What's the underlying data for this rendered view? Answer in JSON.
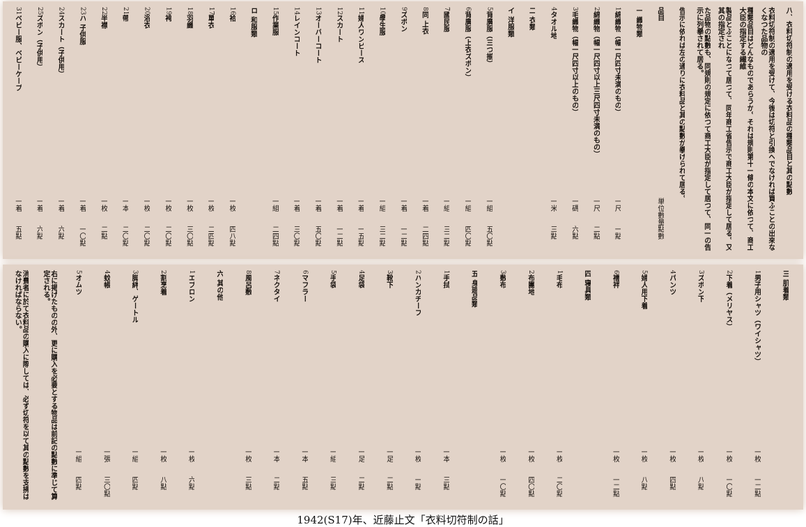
{
  "panels": [
    {
      "columns": [
        {
          "text": "八、衣料切符制の適用を受ける衣料品の種類品目と其の點數"
        },
        {
          "text": "衣料切符制の適用を受けて、今後は切符と引換へでなければ買ふことの出來なくなつた品物の"
        },
        {
          "text": "種類品目はどんなものであらうか。それは規則第十一條の本文に依つて、商工大臣の指定する繊維"
        },
        {
          "text": "製品とふことになつて居つて、同年商工省告示で商工大臣が指定して居る。又其の指定され"
        },
        {
          "text": "た品物の點數も、同規則の規定に依つて商工大臣が指定して居つて、同一の告示に列擧されて居る。"
        },
        {
          "text": "告示に依れば左の通りに衣料品と其の點數が擧げられて居る。"
        },
        {
          "text": "品目",
          "unit": "単位數量",
          "points": "點數"
        },
        {
          "text": "一 織物類"
        },
        {
          "num": "1",
          "text": "綿織物（幅一尺四寸未満のもの）",
          "unit": "一尺",
          "points": "一點"
        },
        {
          "num": "2",
          "text": "綿織物（幅一尺四寸以上三尺四寸未満のもの）",
          "unit": "一尺",
          "points": "二點"
        },
        {
          "num": "3",
          "text": "毛織物（幅一尺四寸以上のもの）",
          "unit": "一碼",
          "points": "六點"
        },
        {
          "num": "4",
          "text": "タオル地",
          "unit": "一米",
          "points": "三點"
        },
        {
          "text": "二 衣類"
        },
        {
          "text": "イ 洋服類"
        },
        {
          "num": "5",
          "text": "背廣服（三つ揃）",
          "unit": "一組",
          "points": "五〇點"
        },
        {
          "num": "6",
          "text": "背廣服（上衣ズボン）",
          "unit": "一組",
          "points": "四〇點"
        },
        {
          "num": "7",
          "text": "國民服",
          "unit": "一組",
          "points": "三二點"
        },
        {
          "num": "8",
          "text": "同 上衣",
          "unit": "一着",
          "points": "二四點"
        },
        {
          "num": "9",
          "text": "ズボン",
          "unit": "一着",
          "points": "一二點"
        },
        {
          "num": "10",
          "text": "學生服",
          "unit": "一組",
          "points": "三二點"
        },
        {
          "num": "11",
          "text": "婦人ワンピース",
          "unit": "一着",
          "points": "一五點"
        },
        {
          "num": "12",
          "text": "スカート",
          "unit": "一着",
          "points": "一二點"
        },
        {
          "num": "13",
          "text": "オーバーコート",
          "unit": "一着",
          "points": "五〇點"
        },
        {
          "num": "14",
          "text": "レインコート",
          "unit": "一着",
          "points": "三〇點"
        },
        {
          "num": "15",
          "text": "作業服",
          "unit": "一組",
          "points": "二四點"
        },
        {
          "text": "ロ 和服類"
        },
        {
          "num": "16",
          "text": "袷",
          "unit": "一枚",
          "points": "四八點"
        },
        {
          "num": "17",
          "text": "單衣",
          "unit": "一枚",
          "points": "二四點"
        },
        {
          "num": "18",
          "text": "羽織",
          "unit": "一枚",
          "points": "三〇點"
        },
        {
          "num": "19",
          "text": "袴",
          "unit": "一枚",
          "points": "二〇點"
        },
        {
          "num": "20",
          "text": "浴衣",
          "unit": "一枚",
          "points": "二〇點"
        },
        {
          "num": "21",
          "text": "帶",
          "unit": "一本",
          "points": "二〇點"
        },
        {
          "num": "22",
          "text": "半襟",
          "unit": "一枚",
          "points": "二點"
        },
        {
          "num": "23",
          "text": "ハ 子供服",
          "unit": "一着",
          "points": "一〇點"
        },
        {
          "num": "24",
          "text": "スカート（子供用）",
          "unit": "一着",
          "points": "六點"
        },
        {
          "num": "25",
          "text": "ズボン（子供用）",
          "unit": "一着",
          "points": "六點"
        },
        {
          "num": "31",
          "text": "ベビー服、ベビーケープ",
          "unit": "一着",
          "points": "五點"
        }
      ]
    },
    {
      "columns": [
        {
          "text": "三 肌着類"
        },
        {
          "num": "1",
          "text": "男子用シャツ（ワイシャツ）",
          "unit": "一枚",
          "points": "一二點"
        },
        {
          "num": "2",
          "text": "下着（メリヤス）",
          "unit": "一枚",
          "points": "一〇點"
        },
        {
          "num": "3",
          "text": "ズボン下",
          "unit": "一枚",
          "points": "八點"
        },
        {
          "num": "4",
          "text": "パンツ",
          "unit": "一枚",
          "points": "四點"
        },
        {
          "num": "5",
          "text": "婦人用下着",
          "unit": "一枚",
          "points": "八點"
        },
        {
          "num": "6",
          "text": "襦袢",
          "unit": "一枚",
          "points": "一二點"
        },
        {
          "text": "四 寝具類"
        },
        {
          "num": "1",
          "text": "毛布",
          "unit": "一枚",
          "points": "二〇點"
        },
        {
          "num": "2",
          "text": "布團地",
          "unit": "一枚",
          "points": "四〇點"
        },
        {
          "num": "3",
          "text": "敷布",
          "unit": "一枚",
          "points": "一〇點"
        },
        {
          "text": "五 身廻品類"
        },
        {
          "num": "1",
          "text": "手拭",
          "unit": "一本",
          "points": "三點"
        },
        {
          "num": "2",
          "text": "ハンカチーフ",
          "unit": "一枚",
          "points": "一點"
        },
        {
          "num": "3",
          "text": "靴下",
          "unit": "一足",
          "points": "二點"
        },
        {
          "num": "4",
          "text": "足袋",
          "unit": "一足",
          "points": "二點"
        },
        {
          "num": "5",
          "text": "手袋",
          "unit": "一組",
          "points": "三點"
        },
        {
          "num": "6",
          "text": "マフラー",
          "unit": "一本",
          "points": "五點"
        },
        {
          "num": "7",
          "text": "ネクタイ",
          "unit": "一本",
          "points": "二點"
        },
        {
          "num": "8",
          "text": "風呂敷",
          "unit": "一枚",
          "points": "三點"
        },
        {
          "text": "六 其の他"
        },
        {
          "num": "1",
          "text": "エプロン",
          "unit": "一枚",
          "points": "六點"
        },
        {
          "num": "2",
          "text": "割烹着",
          "unit": "一枚",
          "points": "八點"
        },
        {
          "num": "3",
          "text": "脚絆、ゲートル",
          "unit": "一組",
          "points": "四點"
        },
        {
          "num": "4",
          "text": "蚊帳",
          "unit": "一張",
          "points": "三〇點"
        },
        {
          "num": "5",
          "text": "オムツ",
          "unit": "一組",
          "points": "四點"
        },
        {
          "text": "右に掲げたものの外、更に購入を必要とする物品は前記の點數に準じて算定される。"
        },
        {
          "text": "消費者に於て衣料品の購入に際しては、必ず切符を以て其の點數を支拂はなければならない。"
        }
      ]
    }
  ],
  "caption": "1942(S17)年、近藤止文「衣料切符制の話」"
}
